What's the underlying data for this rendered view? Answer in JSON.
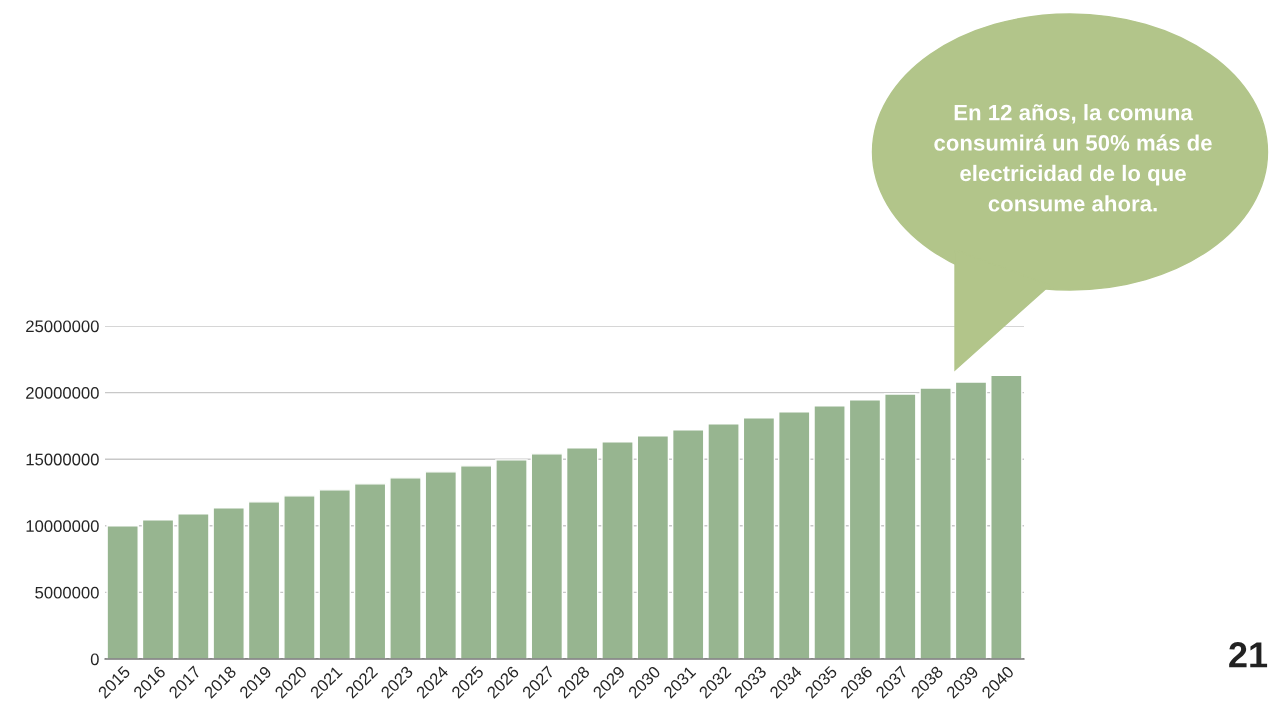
{
  "chart_data": {
    "type": "bar",
    "categories": [
      "2015",
      "2016",
      "2017",
      "2018",
      "2019",
      "2020",
      "2021",
      "2022",
      "2023",
      "2024",
      "2025",
      "2026",
      "2027",
      "2028",
      "2029",
      "2030",
      "2031",
      "2032",
      "2033",
      "2034",
      "2035",
      "2036",
      "2037",
      "2038",
      "2039",
      "2040"
    ],
    "series": [
      {
        "color": "#97b590",
        "values": [
          10000000,
          10450000,
          10900000,
          11350000,
          11800000,
          12250000,
          12700000,
          13150000,
          13600000,
          14050000,
          14500000,
          14950000,
          15400000,
          15850000,
          16300000,
          16750000,
          17200000,
          17650000,
          18100000,
          18550000,
          19000000,
          19450000,
          19900000,
          20350000,
          20800000,
          21300000
        ]
      }
    ],
    "ylim": [
      0,
      25000000
    ],
    "yticks": [
      0,
      5000000,
      10000000,
      15000000,
      20000000,
      25000000
    ],
    "grid": "y",
    "legend": false,
    "annotations": [
      "En 12 años, la comuna\nconsumirá un 50% más de\nelectricidad de lo que\nconsume ahora.",
      "21"
    ]
  }
}
